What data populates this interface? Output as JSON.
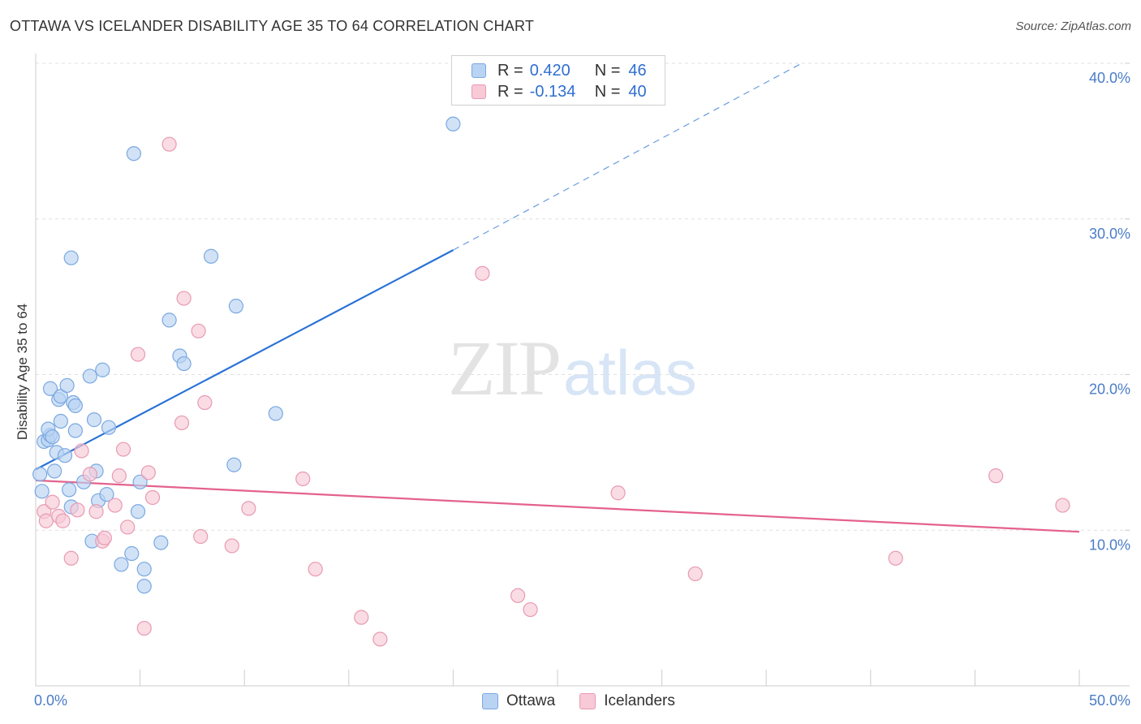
{
  "title": "OTTAWA VS ICELANDER DISABILITY AGE 35 TO 64 CORRELATION CHART",
  "source": "Source: ZipAtlas.com",
  "watermark": {
    "zip": "ZIP",
    "atlas": "atlas"
  },
  "colors": {
    "ottawa_fill": "#b9d3f3",
    "ottawa_stroke": "#7aa8e0",
    "ottawa_line": "#2a72d6",
    "icelanders_fill": "#f8c9d7",
    "icelanders_stroke": "#e89ab2",
    "icelanders_line": "#e4628d",
    "grid": "#e0e0e0",
    "tick_text": "#4a7cc7"
  },
  "legend_top": {
    "rows": [
      {
        "r_label": "R =",
        "r_value": "0.420",
        "n_label": "N =",
        "n_value": "46"
      },
      {
        "r_label": "R =",
        "r_value": "-0.134",
        "n_label": "N =",
        "n_value": "40"
      }
    ]
  },
  "legend_bottom": {
    "items": [
      "Ottawa",
      "Icelanders"
    ]
  },
  "chart_data": {
    "type": "scatter",
    "title": "OTTAWA VS ICELANDER DISABILITY AGE 35 TO 64 CORRELATION CHART",
    "xlabel": "",
    "ylabel": "Disability Age 35 to 64",
    "xlim": [
      0,
      50
    ],
    "ylim": [
      0,
      40
    ],
    "x_tick_labels": [
      "0.0%",
      "50.0%"
    ],
    "y_ticks": [
      10,
      20,
      30,
      40
    ],
    "y_tick_labels": [
      "10.0%",
      "20.0%",
      "30.0%",
      "40.0%"
    ],
    "grid": true,
    "legend_position": "top-center",
    "series": [
      {
        "name": "Ottawa",
        "r": 0.42,
        "n": 46,
        "trend": {
          "x0": 0,
          "y0": 13.9,
          "x1": 20,
          "y1": 28.0,
          "extended_x1": 36.7,
          "extended_y1": 40.0
        },
        "points": [
          [
            0.2,
            13.6
          ],
          [
            0.3,
            12.5
          ],
          [
            0.4,
            15.7
          ],
          [
            0.6,
            15.8
          ],
          [
            0.7,
            16.1
          ],
          [
            0.6,
            16.5
          ],
          [
            0.7,
            19.1
          ],
          [
            0.8,
            16.0
          ],
          [
            0.9,
            13.8
          ],
          [
            1.0,
            15.0
          ],
          [
            1.1,
            18.4
          ],
          [
            1.2,
            18.6
          ],
          [
            1.2,
            17.0
          ],
          [
            1.4,
            14.8
          ],
          [
            1.5,
            19.3
          ],
          [
            1.6,
            12.6
          ],
          [
            1.7,
            11.5
          ],
          [
            1.8,
            18.2
          ],
          [
            1.9,
            18.0
          ],
          [
            1.9,
            16.4
          ],
          [
            2.3,
            13.1
          ],
          [
            2.6,
            19.9
          ],
          [
            2.7,
            9.3
          ],
          [
            2.8,
            17.1
          ],
          [
            2.9,
            13.8
          ],
          [
            3.0,
            11.9
          ],
          [
            3.2,
            20.3
          ],
          [
            3.4,
            12.3
          ],
          [
            3.5,
            16.6
          ],
          [
            1.7,
            27.5
          ],
          [
            4.1,
            7.8
          ],
          [
            4.6,
            8.5
          ],
          [
            4.7,
            34.2
          ],
          [
            4.9,
            11.2
          ],
          [
            5.0,
            13.1
          ],
          [
            5.2,
            7.5
          ],
          [
            5.2,
            6.4
          ],
          [
            6.0,
            9.2
          ],
          [
            6.4,
            23.5
          ],
          [
            6.9,
            21.2
          ],
          [
            7.1,
            20.7
          ],
          [
            8.4,
            27.6
          ],
          [
            9.5,
            14.2
          ],
          [
            9.6,
            24.4
          ],
          [
            11.5,
            17.5
          ],
          [
            20.0,
            36.1
          ]
        ]
      },
      {
        "name": "Icelanders",
        "r": -0.134,
        "n": 40,
        "trend": {
          "x0": 0,
          "y0": 13.2,
          "x1": 50,
          "y1": 9.9
        },
        "points": [
          [
            0.4,
            11.2
          ],
          [
            0.5,
            10.6
          ],
          [
            0.8,
            11.8
          ],
          [
            1.1,
            10.9
          ],
          [
            1.3,
            10.6
          ],
          [
            1.7,
            8.2
          ],
          [
            2.0,
            11.3
          ],
          [
            2.2,
            15.1
          ],
          [
            2.6,
            13.6
          ],
          [
            2.9,
            11.2
          ],
          [
            3.2,
            9.3
          ],
          [
            3.3,
            9.5
          ],
          [
            3.8,
            11.6
          ],
          [
            4.0,
            13.5
          ],
          [
            4.2,
            15.2
          ],
          [
            4.4,
            10.2
          ],
          [
            4.9,
            21.3
          ],
          [
            5.2,
            3.7
          ],
          [
            5.4,
            13.7
          ],
          [
            5.6,
            12.1
          ],
          [
            6.4,
            34.8
          ],
          [
            7.0,
            16.9
          ],
          [
            7.1,
            24.9
          ],
          [
            7.9,
            9.6
          ],
          [
            7.8,
            22.8
          ],
          [
            8.1,
            18.2
          ],
          [
            9.4,
            9.0
          ],
          [
            10.2,
            11.4
          ],
          [
            12.8,
            13.3
          ],
          [
            13.4,
            7.5
          ],
          [
            15.6,
            4.4
          ],
          [
            16.5,
            3.0
          ],
          [
            21.4,
            26.5
          ],
          [
            23.1,
            5.8
          ],
          [
            23.7,
            4.9
          ],
          [
            27.9,
            12.4
          ],
          [
            31.6,
            7.2
          ],
          [
            41.2,
            8.2
          ],
          [
            46.0,
            13.5
          ],
          [
            49.2,
            11.6
          ]
        ]
      }
    ]
  }
}
